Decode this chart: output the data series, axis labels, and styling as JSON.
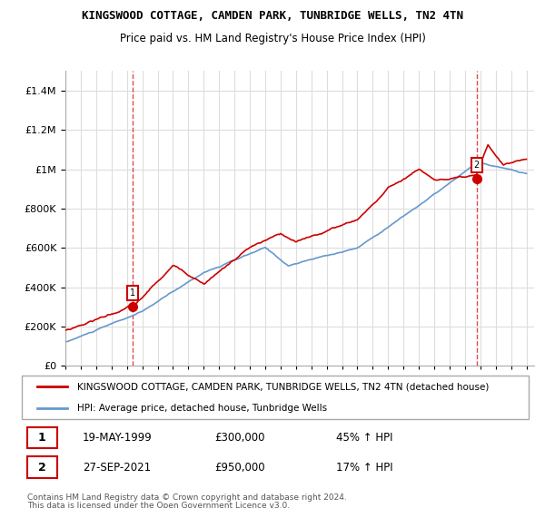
{
  "title": "KINGSWOOD COTTAGE, CAMDEN PARK, TUNBRIDGE WELLS, TN2 4TN",
  "subtitle": "Price paid vs. HM Land Registry's House Price Index (HPI)",
  "legend_line1": "KINGSWOOD COTTAGE, CAMDEN PARK, TUNBRIDGE WELLS, TN2 4TN (detached house)",
  "legend_line2": "HPI: Average price, detached house, Tunbridge Wells",
  "footer1": "Contains HM Land Registry data © Crown copyright and database right 2024.",
  "footer2": "This data is licensed under the Open Government Licence v3.0.",
  "purchase1_label": "1",
  "purchase1_date": "19-MAY-1999",
  "purchase1_price": "£300,000",
  "purchase1_hpi": "45% ↑ HPI",
  "purchase1_year": 1999.38,
  "purchase1_value": 300000,
  "purchase2_label": "2",
  "purchase2_date": "27-SEP-2021",
  "purchase2_price": "£950,000",
  "purchase2_hpi": "17% ↑ HPI",
  "purchase2_year": 2021.75,
  "purchase2_value": 950000,
  "property_color": "#cc0000",
  "hpi_color": "#6699cc",
  "background_color": "#ffffff",
  "grid_color": "#dddddd",
  "ylim": [
    0,
    1500000
  ],
  "xlim_start": 1995.0,
  "xlim_end": 2025.5
}
